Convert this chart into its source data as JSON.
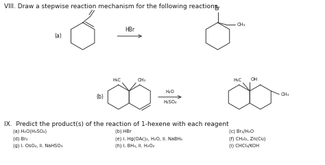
{
  "title": "VIII. Draw a stepwise reaction mechanism for the following reactions",
  "section_ix_title": "IX.  Predict the product(s) of the reaction of 1-hexene with each reagent",
  "col1_lines": [
    "(a) H₂O(H₂SO₄)",
    "(d) Br₂",
    "(g) i. OsO₄, ii. NaHSO₃"
  ],
  "col2_lines": [
    "(b) HBr",
    "(e) i. Hg(OAc)₂, H₂O, ii. NaBH₄",
    "(h) i. BH₃, ii. H₂O₂"
  ],
  "col3_lines": [
    "(c) Br₂/H₂O",
    "(f) CH₂I₂, Zn(Cu)",
    "(i) CHCl₃/KOH"
  ],
  "bg_color": "#ffffff",
  "text_color": "#1a1a1a",
  "font_size_title": 6.5,
  "font_size_body": 5.5,
  "font_size_small": 4.8
}
